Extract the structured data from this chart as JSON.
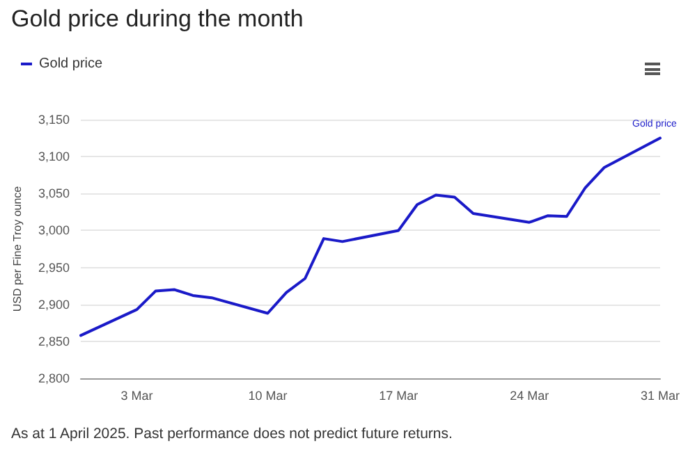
{
  "chart_data": {
    "type": "line",
    "title": "Gold price during the month",
    "ylabel": "USD per Fine Troy ounce",
    "annotations": [
      "As at 1 April 2025. Past performance does not predict future returns."
    ],
    "x": [
      "2025-02-28",
      "2025-03-03",
      "2025-03-04",
      "2025-03-05",
      "2025-03-06",
      "2025-03-07",
      "2025-03-10",
      "2025-03-11",
      "2025-03-12",
      "2025-03-13",
      "2025-03-14",
      "2025-03-17",
      "2025-03-18",
      "2025-03-19",
      "2025-03-20",
      "2025-03-21",
      "2025-03-24",
      "2025-03-25",
      "2025-03-26",
      "2025-03-27",
      "2025-03-28",
      "2025-03-31"
    ],
    "series": [
      {
        "name": "Gold price",
        "color": "#1a1ac8",
        "values": [
          2858,
          2893,
          2918,
          2920,
          2912,
          2909,
          2888,
          2916,
          2935,
          2989,
          2985,
          3000,
          3035,
          3048,
          3045,
          3023,
          3011,
          3020,
          3019,
          3058,
          3085,
          3125
        ]
      }
    ],
    "xlim": [
      "2025-02-28",
      "2025-03-31"
    ],
    "xticks": [
      {
        "value": "2025-03-03",
        "label": "3 Mar"
      },
      {
        "value": "2025-03-10",
        "label": "10 Mar"
      },
      {
        "value": "2025-03-17",
        "label": "17 Mar"
      },
      {
        "value": "2025-03-24",
        "label": "24 Mar"
      },
      {
        "value": "2025-03-31",
        "label": "31 Mar"
      }
    ],
    "ylim": [
      2800,
      3150
    ],
    "yticks": [
      {
        "value": 2800,
        "label": "2,800"
      },
      {
        "value": 2850,
        "label": "2,850"
      },
      {
        "value": 2900,
        "label": "2,900"
      },
      {
        "value": 2950,
        "label": "2,950"
      },
      {
        "value": 3000,
        "label": "3,000"
      },
      {
        "value": 3050,
        "label": "3,050"
      },
      {
        "value": 3100,
        "label": "3,100"
      },
      {
        "value": 3150,
        "label": "3,150"
      }
    ],
    "grid": "y",
    "legend": "top left",
    "marker": "none",
    "line_style": "solid"
  }
}
